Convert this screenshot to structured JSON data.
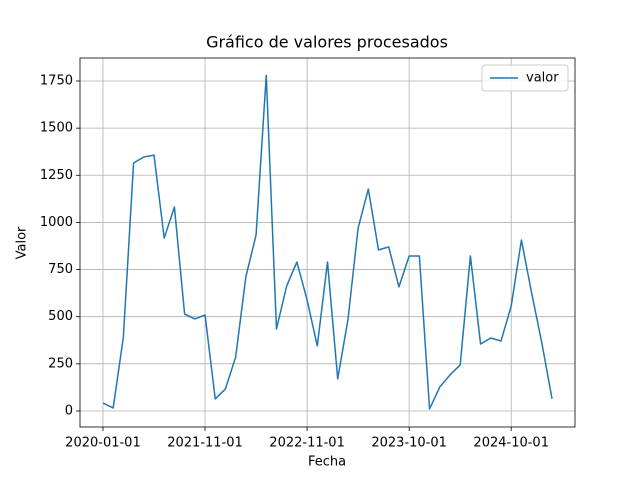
{
  "chart_data": {
    "type": "line",
    "title": "Gráfico de valores procesados",
    "x_label": "Fecha",
    "y_label": "Valor",
    "categories": [
      "2020-01-01",
      null,
      null,
      null,
      null,
      null,
      null,
      null,
      null,
      null,
      "2021-11-01",
      null,
      null,
      null,
      null,
      null,
      null,
      null,
      null,
      null,
      "2022-11-01",
      null,
      null,
      null,
      null,
      null,
      null,
      null,
      null,
      null,
      "2023-10-01",
      null,
      null,
      null,
      null,
      null,
      null,
      null,
      null,
      null,
      "2024-10-01",
      null,
      null,
      null,
      null
    ],
    "series": [
      {
        "name": "valor",
        "color": "#1f77b4",
        "values": [
          42,
          16,
          392,
          1315,
          1347,
          1357,
          917,
          1082,
          514,
          488,
          509,
          64,
          117,
          286,
          711,
          933,
          1780,
          435,
          663,
          790,
          589,
          345,
          790,
          170,
          483,
          970,
          1177,
          854,
          870,
          658,
          822,
          822,
          11,
          127,
          191,
          244,
          822,
          355,
          387,
          371,
          557,
          907,
          626,
          361,
          64
        ]
      }
    ],
    "ylim": [
      -85,
      1872
    ],
    "yticks": [
      0,
      250,
      500,
      750,
      1000,
      1250,
      1500,
      1750
    ],
    "grid": true,
    "legend": "upper right"
  }
}
